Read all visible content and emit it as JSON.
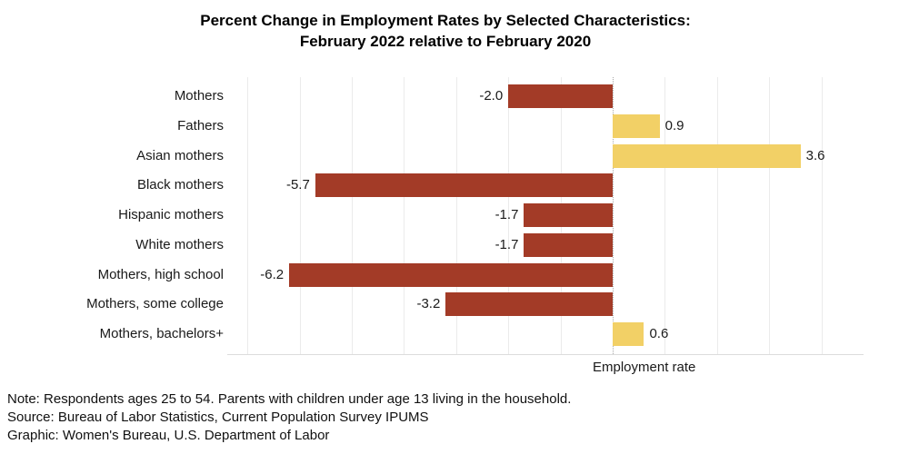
{
  "title": {
    "line1": "Percent Change in Employment Rates by Selected Characteristics:",
    "line2": "February 2022 relative to February 2020"
  },
  "chart_data": {
    "type": "bar",
    "orientation": "horizontal",
    "title": "Percent Change in Employment Rates by Selected Characteristics: February 2022 relative to February 2020",
    "categories": [
      "Mothers",
      "Fathers",
      "Asian mothers",
      "Black mothers",
      "Hispanic mothers",
      "White mothers",
      "Mothers, high school",
      "Mothers, some college",
      "Mothers, bachelors+"
    ],
    "values": [
      -2.0,
      0.9,
      3.6,
      -5.7,
      -1.7,
      -1.7,
      -6.2,
      -3.2,
      0.6
    ],
    "value_labels": [
      "-2.0",
      "0.9",
      "3.6",
      "-5.7",
      "-1.7",
      "-1.7",
      "-6.2",
      "-3.2",
      "0.6"
    ],
    "xlabel": "Employment rate",
    "xlim": [
      -7.4,
      4.8
    ],
    "grid": true,
    "grid_interval": 1,
    "zero_line_style": "dotted",
    "colors": {
      "negative": "#a33b27",
      "positive": "#f2d066"
    }
  },
  "axis": {
    "xlabel": "Employment rate"
  },
  "notes": {
    "note": "Note: Respondents ages 25 to 54. Parents with children under age 13 living in the household.",
    "source": "Source: Bureau of Labor Statistics, Current Population Survey IPUMS",
    "graphic": "Graphic: Women's Bureau, U.S. Department of Labor"
  }
}
